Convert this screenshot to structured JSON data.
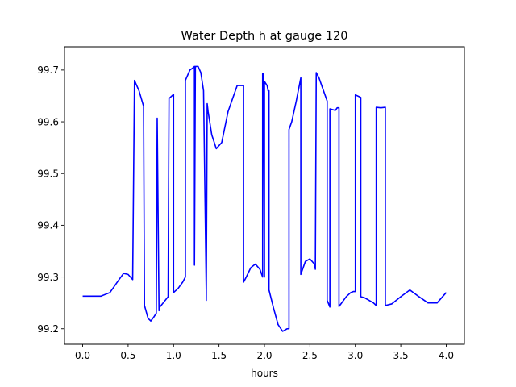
{
  "chart_data": {
    "type": "line",
    "title": "Water Depth h at gauge 120",
    "xlabel": "hours",
    "ylabel": "",
    "xlim": [
      -0.2,
      4.2
    ],
    "ylim": [
      99.17,
      99.745
    ],
    "xticks": [
      0.0,
      0.5,
      1.0,
      1.5,
      2.0,
      2.5,
      3.0,
      3.5,
      4.0
    ],
    "xtick_labels": [
      "0.0",
      "0.5",
      "1.0",
      "1.5",
      "2.0",
      "2.5",
      "3.0",
      "3.5",
      "4.0"
    ],
    "yticks": [
      99.2,
      99.3,
      99.4,
      99.5,
      99.6,
      99.7
    ],
    "ytick_labels": [
      "99.2",
      "99.3",
      "99.4",
      "99.5",
      "99.6",
      "99.7"
    ],
    "grid": false,
    "line_color": "#0000ff",
    "series": [
      {
        "x": [
          0.0,
          0.2,
          0.3,
          0.4,
          0.45,
          0.5,
          0.55,
          0.57,
          0.57,
          0.62,
          0.67,
          0.68,
          0.72,
          0.75,
          0.78,
          0.81,
          0.82,
          0.82,
          0.84,
          0.84,
          0.94,
          0.95,
          0.95,
          1.0,
          1.0,
          1.05,
          1.1,
          1.13,
          1.13,
          1.18,
          1.22,
          1.23,
          1.23,
          1.24,
          1.27,
          1.3,
          1.33,
          1.36,
          1.36,
          1.37,
          1.38,
          1.42,
          1.47,
          1.53,
          1.6,
          1.7,
          1.77,
          1.77,
          1.8,
          1.85,
          1.9,
          1.95,
          1.98,
          1.98,
          1.99,
          2.0,
          2.0,
          2.03,
          2.04,
          2.05,
          2.05,
          2.1,
          2.15,
          2.2,
          2.25,
          2.27,
          2.27,
          2.3,
          2.35,
          2.4,
          2.4,
          2.45,
          2.5,
          2.55,
          2.56,
          2.57,
          2.6,
          2.65,
          2.69,
          2.69,
          2.72,
          2.72,
          2.78,
          2.8,
          2.82,
          2.82,
          2.85,
          2.9,
          2.95,
          2.98,
          3.0,
          3.0,
          3.06,
          3.06,
          3.1,
          3.2,
          3.23,
          3.23,
          3.28,
          3.33,
          3.33,
          3.4,
          3.5,
          3.6,
          3.7,
          3.8,
          3.9,
          4.0
        ],
        "y": [
          99.263,
          99.263,
          99.27,
          99.295,
          99.307,
          99.305,
          99.295,
          99.68,
          99.68,
          99.66,
          99.63,
          99.245,
          99.22,
          99.215,
          99.222,
          99.23,
          99.607,
          99.607,
          99.235,
          99.24,
          99.262,
          99.645,
          99.645,
          99.653,
          99.27,
          99.278,
          99.29,
          99.3,
          99.68,
          99.7,
          99.705,
          99.707,
          99.323,
          99.707,
          99.707,
          99.695,
          99.66,
          99.27,
          99.255,
          99.635,
          99.62,
          99.575,
          99.548,
          99.56,
          99.62,
          99.67,
          99.67,
          99.29,
          99.3,
          99.318,
          99.325,
          99.315,
          99.3,
          99.693,
          99.693,
          99.3,
          99.678,
          99.67,
          99.66,
          99.66,
          99.275,
          99.24,
          99.208,
          99.195,
          99.2,
          99.2,
          99.585,
          99.6,
          99.64,
          99.685,
          99.305,
          99.33,
          99.335,
          99.325,
          99.315,
          99.695,
          99.685,
          99.66,
          99.64,
          99.255,
          99.242,
          99.625,
          99.622,
          99.627,
          99.627,
          99.243,
          99.25,
          99.262,
          99.27,
          99.272,
          99.272,
          99.652,
          99.647,
          99.262,
          99.26,
          99.25,
          99.245,
          99.628,
          99.627,
          99.628,
          99.245,
          99.248,
          99.262,
          99.275,
          99.262,
          99.25,
          99.25,
          99.27
        ]
      }
    ]
  }
}
